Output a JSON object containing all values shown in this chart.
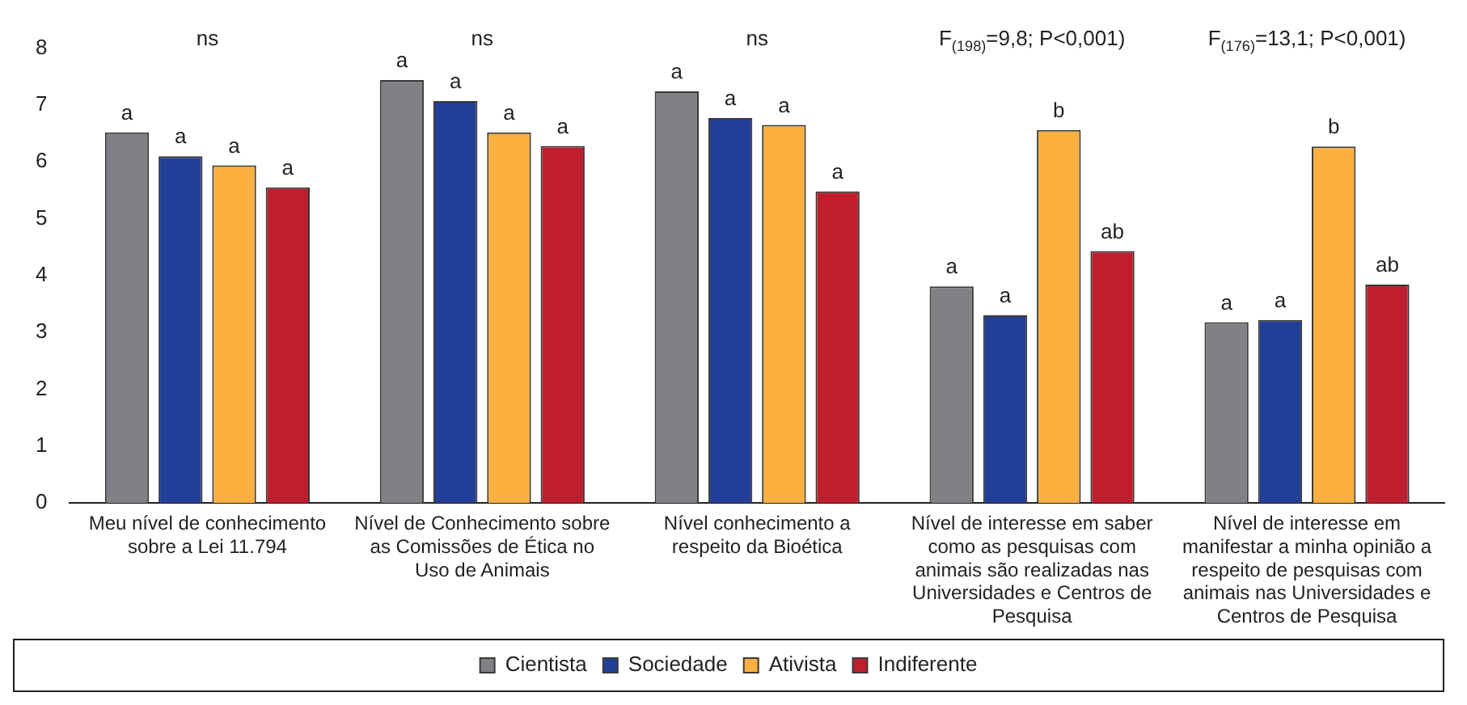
{
  "chart_data": {
    "type": "bar",
    "categories": [
      "Meu nível de conhecimento sobre a Lei 11.794",
      "Nível de Conhecimento sobre as Comissões de Ética no Uso de Animais",
      "Nível conhecimento a respeito da Bioética",
      "Nível de interesse em saber como as pesquisas com animais são realizadas nas Universidades e Centros de Pesquisa",
      "Nível de interesse em manifestar a minha opinião a respeito de pesquisas com animais nas Universidades e Centros de Pesquisa"
    ],
    "series": [
      {
        "name": "Cientista",
        "color": "#808184",
        "values": [
          6.52,
          7.44,
          7.24,
          3.81,
          3.18
        ],
        "value_labels": [
          "a",
          "a",
          "a",
          "a",
          "a"
        ]
      },
      {
        "name": "Sociedade",
        "color": "#223f98",
        "values": [
          6.1,
          7.07,
          6.77,
          3.3,
          3.22
        ],
        "value_labels": [
          "a",
          "a",
          "a",
          "a",
          "a"
        ]
      },
      {
        "name": "Ativista",
        "color": "#fbb040",
        "values": [
          5.94,
          6.52,
          6.65,
          6.56,
          6.27
        ],
        "value_labels": [
          "a",
          "a",
          "a",
          "b",
          "b"
        ]
      },
      {
        "name": "Indiferente",
        "color": "#be1e2d",
        "values": [
          5.55,
          6.28,
          5.48,
          4.43,
          3.84
        ],
        "value_labels": [
          "a",
          "a",
          "a",
          "ab",
          "ab"
        ]
      }
    ],
    "annotations": [
      "ns",
      "ns",
      "ns",
      "F$_{(198)}$=9,8; P<0,001)",
      "F$_{(176)}$=13,1; P<0,001)"
    ],
    "ylim": [
      0,
      8
    ],
    "yticks": [
      0,
      1,
      2,
      3,
      4,
      5,
      6,
      7,
      8
    ],
    "grid": false,
    "legend": "bottom"
  }
}
